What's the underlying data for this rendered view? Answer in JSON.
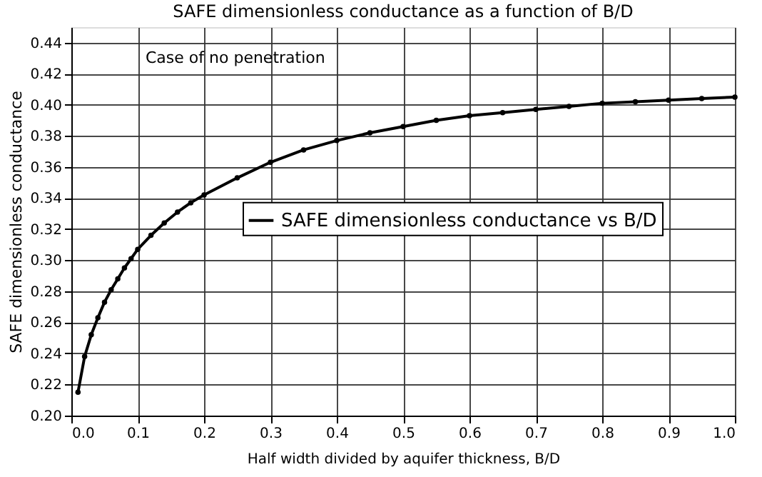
{
  "chart_data": {
    "type": "line",
    "title": "SAFE dimensionless conductance as a function of B/D",
    "xlabel": "Half width divided by aquifer thickness, B/D",
    "ylabel": "SAFE dimensionless conductance",
    "annotations": [
      "Case of no penetration"
    ],
    "x": [
      0.01,
      0.02,
      0.03,
      0.04,
      0.05,
      0.06,
      0.07,
      0.08,
      0.09,
      0.1,
      0.12,
      0.14,
      0.16,
      0.18,
      0.2,
      0.25,
      0.3,
      0.35,
      0.4,
      0.45,
      0.5,
      0.55,
      0.6,
      0.65,
      0.7,
      0.75,
      0.8,
      0.85,
      0.9,
      0.95,
      1.0
    ],
    "series": [
      {
        "name": "SAFE dimensionless conductance vs B/D",
        "color": "#000000",
        "values": [
          0.215,
          0.238,
          0.252,
          0.263,
          0.273,
          0.281,
          0.288,
          0.295,
          0.301,
          0.307,
          0.316,
          0.324,
          0.331,
          0.337,
          0.342,
          0.353,
          0.363,
          0.371,
          0.377,
          0.382,
          0.386,
          0.39,
          0.393,
          0.395,
          0.397,
          0.399,
          0.401,
          0.402,
          0.403,
          0.404,
          0.405
        ]
      }
    ],
    "xlim": [
      0,
      1.0
    ],
    "ylim": [
      0.2,
      0.45
    ],
    "xticks": [
      {
        "value": 0,
        "label": "0.0"
      },
      0.1,
      0.2,
      0.3,
      0.4,
      0.5,
      0.6,
      0.7,
      0.8,
      0.9,
      {
        "value": 1,
        "label": "1.0"
      }
    ],
    "yticks": [
      {
        "value": 0.2,
        "label": "0.20"
      },
      0.22,
      0.24,
      0.26,
      0.28,
      {
        "value": 0.3,
        "label": "0.30"
      },
      0.32,
      0.34,
      0.36,
      0.38,
      {
        "value": 0.4,
        "label": "0.40"
      },
      0.42,
      0.44
    ],
    "grid": true,
    "legend": "right",
    "marker": "circle",
    "line_style": "solid"
  }
}
